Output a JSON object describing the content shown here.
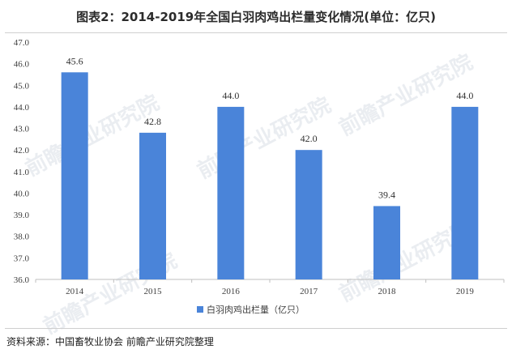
{
  "title": "图表2：2014-2019年全国白羽肉鸡出栏量变化情况(单位：亿只)",
  "source": "资料来源：中国畜牧业协会 前瞻产业研究院整理",
  "watermark": "前瞻产业研究院",
  "colors": {
    "bar": "#4a84d9",
    "axis": "#bfbfbf",
    "grid": "#d9d9d9"
  },
  "chart_data": {
    "type": "bar",
    "categories": [
      "2014",
      "2015",
      "2016",
      "2017",
      "2018",
      "2019"
    ],
    "series": [
      {
        "name": "白羽肉鸡出栏量（亿只）",
        "values": [
          45.6,
          42.8,
          44.0,
          42.0,
          39.4,
          44.0
        ]
      }
    ],
    "data_labels": [
      "45.6",
      "42.8",
      "44.0",
      "42.0",
      "39.4",
      "44.0"
    ],
    "ylim": [
      36.0,
      47.0
    ],
    "y_ticks": [
      "36.0",
      "37.0",
      "38.0",
      "39.0",
      "40.0",
      "41.0",
      "42.0",
      "43.0",
      "44.0",
      "45.0",
      "46.0",
      "47.0"
    ],
    "grid": false,
    "legend_position": "bottom"
  }
}
